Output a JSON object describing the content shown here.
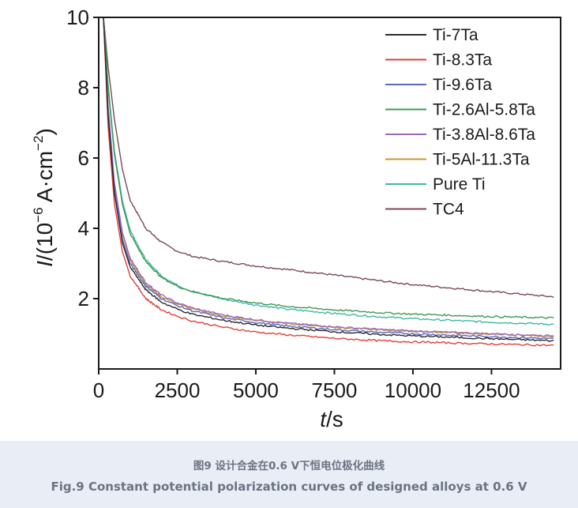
{
  "chart_data": {
    "type": "line",
    "x_label_italic": "t",
    "x_label_unit": "/s",
    "y_label_italic": "I",
    "y_label_unit_prefix": "/(10",
    "y_label_exp1": "−6",
    "y_label_mid": " A·cm",
    "y_label_exp2": "−2",
    "y_label_suffix": ")",
    "xlim": [
      0,
      14700
    ],
    "ylim": [
      0,
      10
    ],
    "x_ticks": [
      0,
      2500,
      5000,
      7500,
      10000,
      12500
    ],
    "x_tick_labels": [
      "0",
      "2500",
      "5000",
      "7500",
      "10000",
      "12500"
    ],
    "y_ticks": [
      2,
      4,
      6,
      8,
      10
    ],
    "y_tick_labels": [
      "2",
      "4",
      "6",
      "8",
      "10"
    ],
    "legend_position": "top-right",
    "grid": false,
    "series": [
      {
        "name": "Ti-7Ta",
        "color": "#2b2b2b",
        "points": [
          [
            150,
            10
          ],
          [
            300,
            7.2
          ],
          [
            500,
            5.0
          ],
          [
            750,
            3.6
          ],
          [
            1000,
            2.9
          ],
          [
            1500,
            2.25
          ],
          [
            2000,
            1.9
          ],
          [
            2500,
            1.7
          ],
          [
            3000,
            1.55
          ],
          [
            4000,
            1.38
          ],
          [
            5000,
            1.25
          ],
          [
            6000,
            1.16
          ],
          [
            7500,
            1.06
          ],
          [
            9000,
            0.98
          ],
          [
            10000,
            0.94
          ],
          [
            12500,
            0.86
          ],
          [
            14500,
            0.8
          ]
        ]
      },
      {
        "name": "Ti-8.3Ta",
        "color": "#e0403a",
        "points": [
          [
            150,
            10
          ],
          [
            300,
            6.9
          ],
          [
            500,
            4.7
          ],
          [
            750,
            3.35
          ],
          [
            1000,
            2.65
          ],
          [
            1500,
            2.0
          ],
          [
            2000,
            1.68
          ],
          [
            2500,
            1.5
          ],
          [
            3000,
            1.36
          ],
          [
            4000,
            1.18
          ],
          [
            5000,
            1.05
          ],
          [
            6000,
            0.97
          ],
          [
            7500,
            0.87
          ],
          [
            9000,
            0.8
          ],
          [
            10000,
            0.77
          ],
          [
            12500,
            0.71
          ],
          [
            14500,
            0.67
          ]
        ]
      },
      {
        "name": "Ti-9.6Ta",
        "color": "#5a68b8",
        "points": [
          [
            150,
            10
          ],
          [
            300,
            7.3
          ],
          [
            500,
            5.1
          ],
          [
            750,
            3.7
          ],
          [
            1000,
            3.0
          ],
          [
            1500,
            2.35
          ],
          [
            2000,
            2.0
          ],
          [
            2500,
            1.8
          ],
          [
            3000,
            1.65
          ],
          [
            4000,
            1.45
          ],
          [
            5000,
            1.32
          ],
          [
            6000,
            1.22
          ],
          [
            7500,
            1.12
          ],
          [
            9000,
            1.04
          ],
          [
            10000,
            1.0
          ],
          [
            12500,
            0.92
          ],
          [
            14500,
            0.86
          ]
        ]
      },
      {
        "name": "Ti-2.6Al-5.8Ta",
        "color": "#3e9a52",
        "points": [
          [
            150,
            10
          ],
          [
            300,
            8.0
          ],
          [
            500,
            6.1
          ],
          [
            750,
            4.7
          ],
          [
            1000,
            3.85
          ],
          [
            1500,
            3.05
          ],
          [
            2000,
            2.6
          ],
          [
            2500,
            2.35
          ],
          [
            3000,
            2.2
          ],
          [
            4000,
            2.0
          ],
          [
            5000,
            1.88
          ],
          [
            6000,
            1.78
          ],
          [
            7500,
            1.68
          ],
          [
            9000,
            1.6
          ],
          [
            10000,
            1.56
          ],
          [
            12500,
            1.49
          ],
          [
            14500,
            1.45
          ]
        ]
      },
      {
        "name": "Ti-3.8Al-8.6Ta",
        "color": "#9a68c0",
        "points": [
          [
            150,
            10
          ],
          [
            300,
            7.5
          ],
          [
            500,
            5.3
          ],
          [
            750,
            3.9
          ],
          [
            1000,
            3.15
          ],
          [
            1500,
            2.45
          ],
          [
            2000,
            2.1
          ],
          [
            2500,
            1.88
          ],
          [
            3000,
            1.73
          ],
          [
            4000,
            1.53
          ],
          [
            5000,
            1.4
          ],
          [
            6000,
            1.3
          ],
          [
            7500,
            1.2
          ],
          [
            9000,
            1.12
          ],
          [
            10000,
            1.08
          ],
          [
            12500,
            1.0
          ],
          [
            14500,
            0.94
          ]
        ]
      },
      {
        "name": "Ti-5Al-11.3Ta",
        "color": "#c9962b",
        "points": [
          [
            150,
            10
          ],
          [
            300,
            7.4
          ],
          [
            500,
            5.2
          ],
          [
            750,
            3.85
          ],
          [
            1000,
            3.1
          ],
          [
            1500,
            2.4
          ],
          [
            2000,
            2.05
          ],
          [
            2500,
            1.85
          ],
          [
            3000,
            1.7
          ],
          [
            4000,
            1.5
          ],
          [
            5000,
            1.38
          ],
          [
            6000,
            1.29
          ],
          [
            7500,
            1.19
          ],
          [
            9000,
            1.11
          ],
          [
            10000,
            1.07
          ],
          [
            12500,
            0.99
          ],
          [
            14500,
            0.93
          ]
        ]
      },
      {
        "name": "Pure Ti",
        "color": "#3fb6a8",
        "points": [
          [
            150,
            10
          ],
          [
            300,
            8.1
          ],
          [
            500,
            6.2
          ],
          [
            750,
            4.8
          ],
          [
            1000,
            3.95
          ],
          [
            1500,
            3.1
          ],
          [
            2000,
            2.65
          ],
          [
            2500,
            2.38
          ],
          [
            3000,
            2.2
          ],
          [
            4000,
            1.98
          ],
          [
            5000,
            1.82
          ],
          [
            6000,
            1.7
          ],
          [
            7500,
            1.58
          ],
          [
            9000,
            1.48
          ],
          [
            10000,
            1.43
          ],
          [
            12500,
            1.33
          ],
          [
            14500,
            1.27
          ]
        ]
      },
      {
        "name": "TC4",
        "color": "#7a4a52",
        "points": [
          [
            150,
            10
          ],
          [
            300,
            8.6
          ],
          [
            500,
            7.1
          ],
          [
            750,
            5.7
          ],
          [
            1000,
            4.8
          ],
          [
            1500,
            4.0
          ],
          [
            2000,
            3.6
          ],
          [
            2500,
            3.35
          ],
          [
            3000,
            3.2
          ],
          [
            4000,
            3.05
          ],
          [
            5000,
            2.93
          ],
          [
            6000,
            2.83
          ],
          [
            7500,
            2.67
          ],
          [
            9000,
            2.5
          ],
          [
            10000,
            2.4
          ],
          [
            12500,
            2.2
          ],
          [
            14500,
            2.05
          ]
        ]
      }
    ]
  },
  "caption": {
    "chinese": "图9 设计合金在0.6 V下恒电位极化曲线",
    "english": "Fig.9 Constant potential polarization curves of designed alloys at 0.6 V"
  }
}
